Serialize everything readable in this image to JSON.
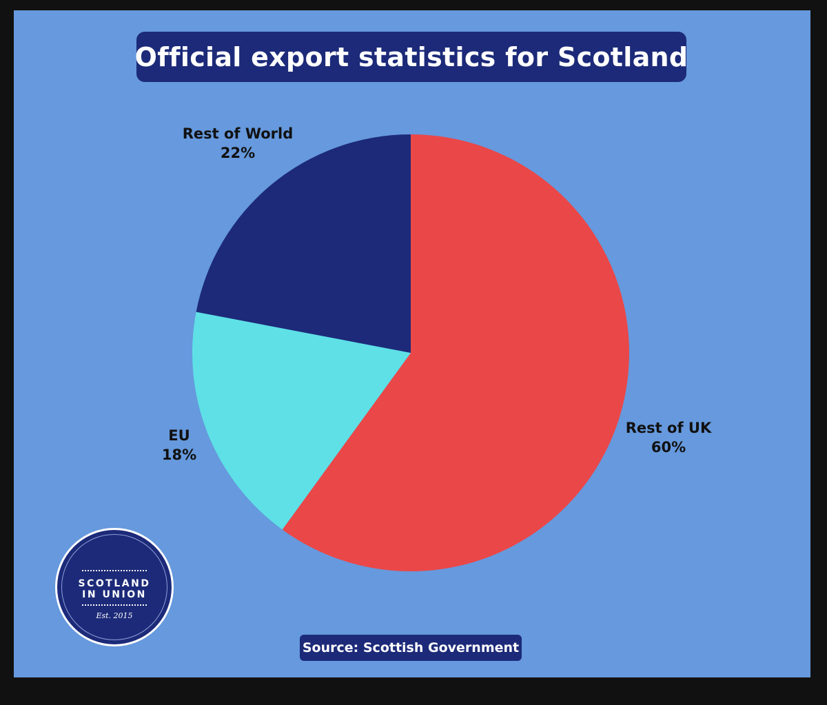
{
  "title": "Official export statistics for Scotland",
  "source": "Source: Scottish Government",
  "logo": {
    "line1": "SCOTLAND",
    "line2": "IN UNION",
    "est": "Est. 2015"
  },
  "chart_data": {
    "type": "pie",
    "title": "Official export statistics for Scotland",
    "slices": [
      {
        "label": "Rest of UK",
        "value": 60,
        "value_label": "60%",
        "color": "#ea4748"
      },
      {
        "label": "EU",
        "value": 18,
        "value_label": "18%",
        "color": "#5ee0e6"
      },
      {
        "label": "Rest of World",
        "value": 22,
        "value_label": "22%",
        "color": "#1c2a79"
      }
    ],
    "start": "12 o'clock",
    "direction": "clockwise"
  }
}
